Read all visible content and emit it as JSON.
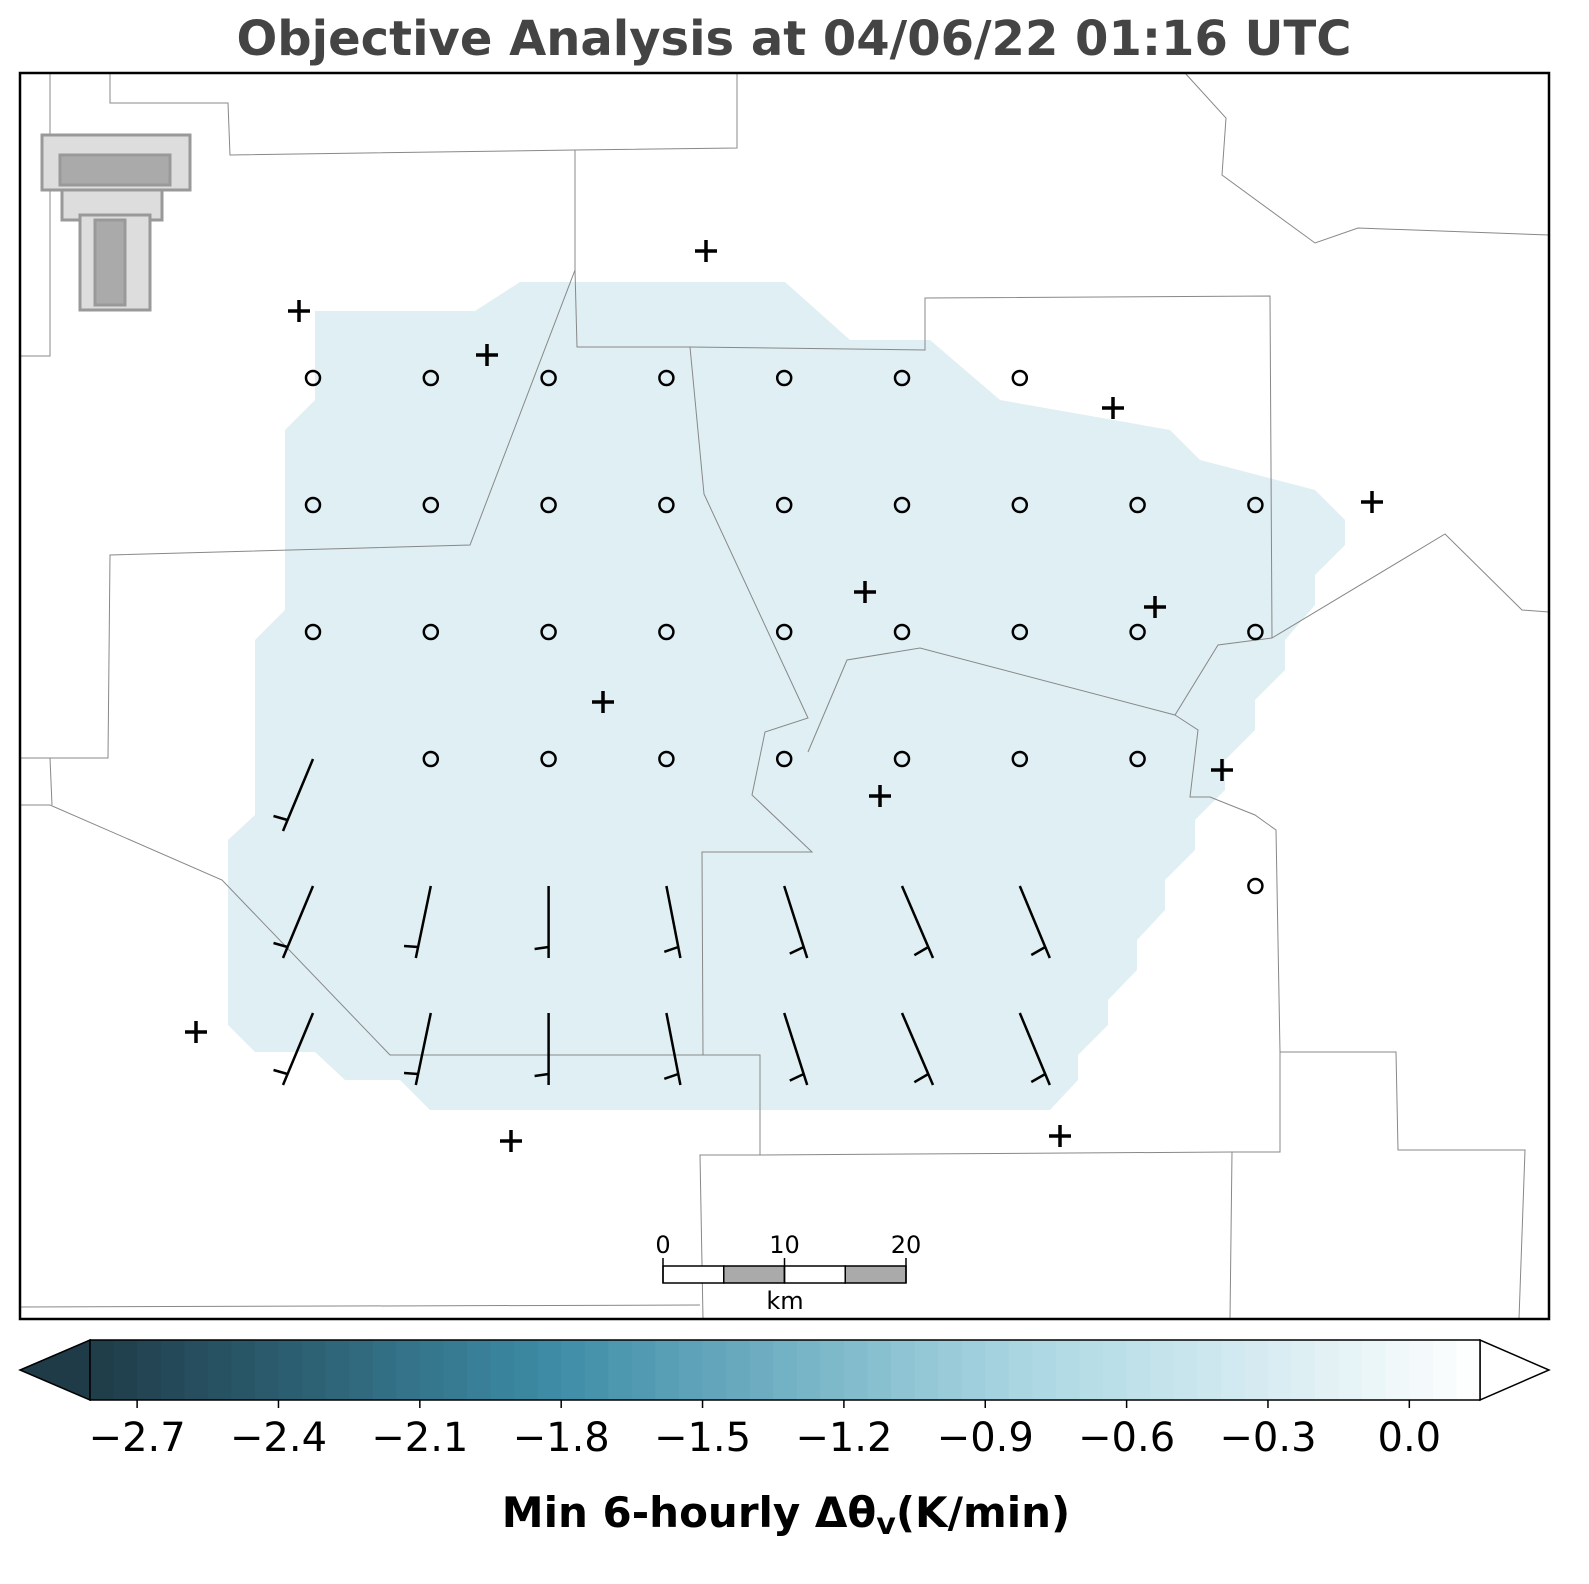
{
  "title": "Objective Analysis at 04/06/22 01:16 UTC",
  "colorbar": {
    "label": "Min 6-hourly Δθ",
    "label_sub": "v",
    "label_unit": "(K/min)",
    "lim": [
      -2.8,
      0.15
    ],
    "ticks": [
      {
        "value": -2.7,
        "label": "−2.7"
      },
      {
        "value": -2.4,
        "label": "−2.4"
      },
      {
        "value": -2.1,
        "label": "−2.1"
      },
      {
        "value": -1.8,
        "label": "−1.8"
      },
      {
        "value": -1.5,
        "label": "−1.5"
      },
      {
        "value": -1.2,
        "label": "−1.2"
      },
      {
        "value": -0.9,
        "label": "−0.9"
      },
      {
        "value": -0.6,
        "label": "−0.6"
      },
      {
        "value": -0.3,
        "label": "−0.3"
      },
      {
        "value": 0,
        "label": "0.0"
      }
    ],
    "colormap": [
      "#1f3b48",
      "#3d8ca6",
      "#a9d6e2",
      "#ffffff"
    ]
  },
  "scale_bar": {
    "ticks": [
      0,
      10,
      20
    ],
    "unit": "km"
  }
}
